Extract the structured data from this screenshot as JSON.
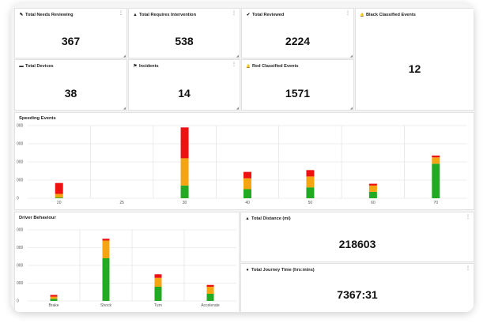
{
  "tiles": {
    "needs_reviewing": {
      "icon": "✎",
      "label": "Total Needs Reviewing",
      "value": "367"
    },
    "requires_intervention": {
      "icon": "▲",
      "label": "Total Requires Intervention",
      "value": "538"
    },
    "reviewed": {
      "icon": "✔",
      "label": "Total Reviewed",
      "value": "2224"
    },
    "black_events": {
      "icon": "🔔",
      "label": "Black Classified Events",
      "value": "12"
    },
    "devices": {
      "icon": "▬",
      "label": "Total Devices",
      "value": "38"
    },
    "incidents": {
      "icon": "⚑",
      "label": "Incidents",
      "value": "14"
    },
    "red_events": {
      "icon": "🔔",
      "label": "Red Classified Events",
      "value": "1571"
    },
    "distance": {
      "icon": "▲",
      "label": "Total Distance (mi)",
      "value": "218603"
    },
    "journey_time": {
      "icon": "●",
      "label": "Total Journey Time (hrs:mins)",
      "value": "7367:31"
    }
  },
  "colors": {
    "green": "#22aa22",
    "amber": "#f5a512",
    "red": "#ee1111",
    "grid": "#dddddd"
  },
  "chart_data": [
    {
      "type": "bar",
      "stacked": true,
      "title": "Speeding Events",
      "categories": [
        "20",
        "25",
        "30",
        "40",
        "50",
        "60",
        "70"
      ],
      "series": [
        {
          "color": "#22aa22",
          "values": [
            40,
            0,
            700,
            500,
            600,
            350,
            1900
          ]
        },
        {
          "color": "#f5a512",
          "values": [
            200,
            0,
            1500,
            600,
            600,
            350,
            350
          ]
        },
        {
          "color": "#ee1111",
          "values": [
            600,
            0,
            1700,
            350,
            350,
            100,
            100
          ]
        }
      ],
      "yticks": [
        "0",
        "000",
        "000",
        "000",
        "000"
      ],
      "ylim": [
        0,
        4000
      ],
      "grid": true
    },
    {
      "type": "bar",
      "stacked": true,
      "title": "Driver Behaviour",
      "categories": [
        "Brake",
        "Shock",
        "Turn",
        "Accelerate"
      ],
      "series": [
        {
          "color": "#22aa22",
          "values": [
            120,
            2400,
            800,
            400
          ]
        },
        {
          "color": "#f5a512",
          "values": [
            120,
            1000,
            500,
            400
          ]
        },
        {
          "color": "#ee1111",
          "values": [
            100,
            100,
            200,
            100
          ]
        }
      ],
      "yticks": [
        "0",
        "000",
        "000",
        "000",
        "000"
      ],
      "ylim": [
        0,
        4000
      ],
      "grid": true
    }
  ]
}
